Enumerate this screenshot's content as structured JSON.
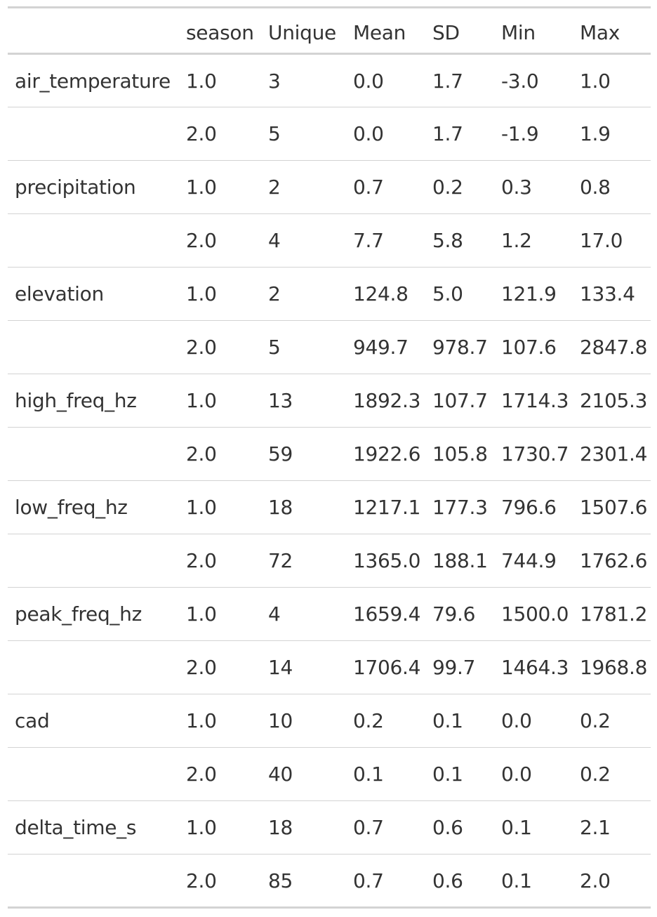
{
  "table": {
    "headers": [
      "",
      "season",
      "Unique",
      "Mean",
      "SD",
      "Min",
      "Max"
    ],
    "rows": [
      [
        "air_temperature",
        "1.0",
        "3",
        "0.0",
        "1.7",
        "-3.0",
        "1.0"
      ],
      [
        "",
        "2.0",
        "5",
        "0.0",
        "1.7",
        "-1.9",
        "1.9"
      ],
      [
        "precipitation",
        "1.0",
        "2",
        "0.7",
        "0.2",
        "0.3",
        "0.8"
      ],
      [
        "",
        "2.0",
        "4",
        "7.7",
        "5.8",
        "1.2",
        "17.0"
      ],
      [
        "elevation",
        "1.0",
        "2",
        "124.8",
        "5.0",
        "121.9",
        "133.4"
      ],
      [
        "",
        "2.0",
        "5",
        "949.7",
        "978.7",
        "107.6",
        "2847.8"
      ],
      [
        "high_freq_hz",
        "1.0",
        "13",
        "1892.3",
        "107.7",
        "1714.3",
        "2105.3"
      ],
      [
        "",
        "2.0",
        "59",
        "1922.6",
        "105.8",
        "1730.7",
        "2301.4"
      ],
      [
        "low_freq_hz",
        "1.0",
        "18",
        "1217.1",
        "177.3",
        "796.6",
        "1507.6"
      ],
      [
        "",
        "2.0",
        "72",
        "1365.0",
        "188.1",
        "744.9",
        "1762.6"
      ],
      [
        "peak_freq_hz",
        "1.0",
        "4",
        "1659.4",
        "79.6",
        "1500.0",
        "1781.2"
      ],
      [
        "",
        "2.0",
        "14",
        "1706.4",
        "99.7",
        "1464.3",
        "1968.8"
      ],
      [
        "cad",
        "1.0",
        "10",
        "0.2",
        "0.1",
        "0.0",
        "0.2"
      ],
      [
        "",
        "2.0",
        "40",
        "0.1",
        "0.1",
        "0.0",
        "0.2"
      ],
      [
        "delta_time_s",
        "1.0",
        "18",
        "0.7",
        "0.6",
        "0.1",
        "2.1"
      ],
      [
        "",
        "2.0",
        "85",
        "0.7",
        "0.6",
        "0.1",
        "2.0"
      ]
    ]
  }
}
